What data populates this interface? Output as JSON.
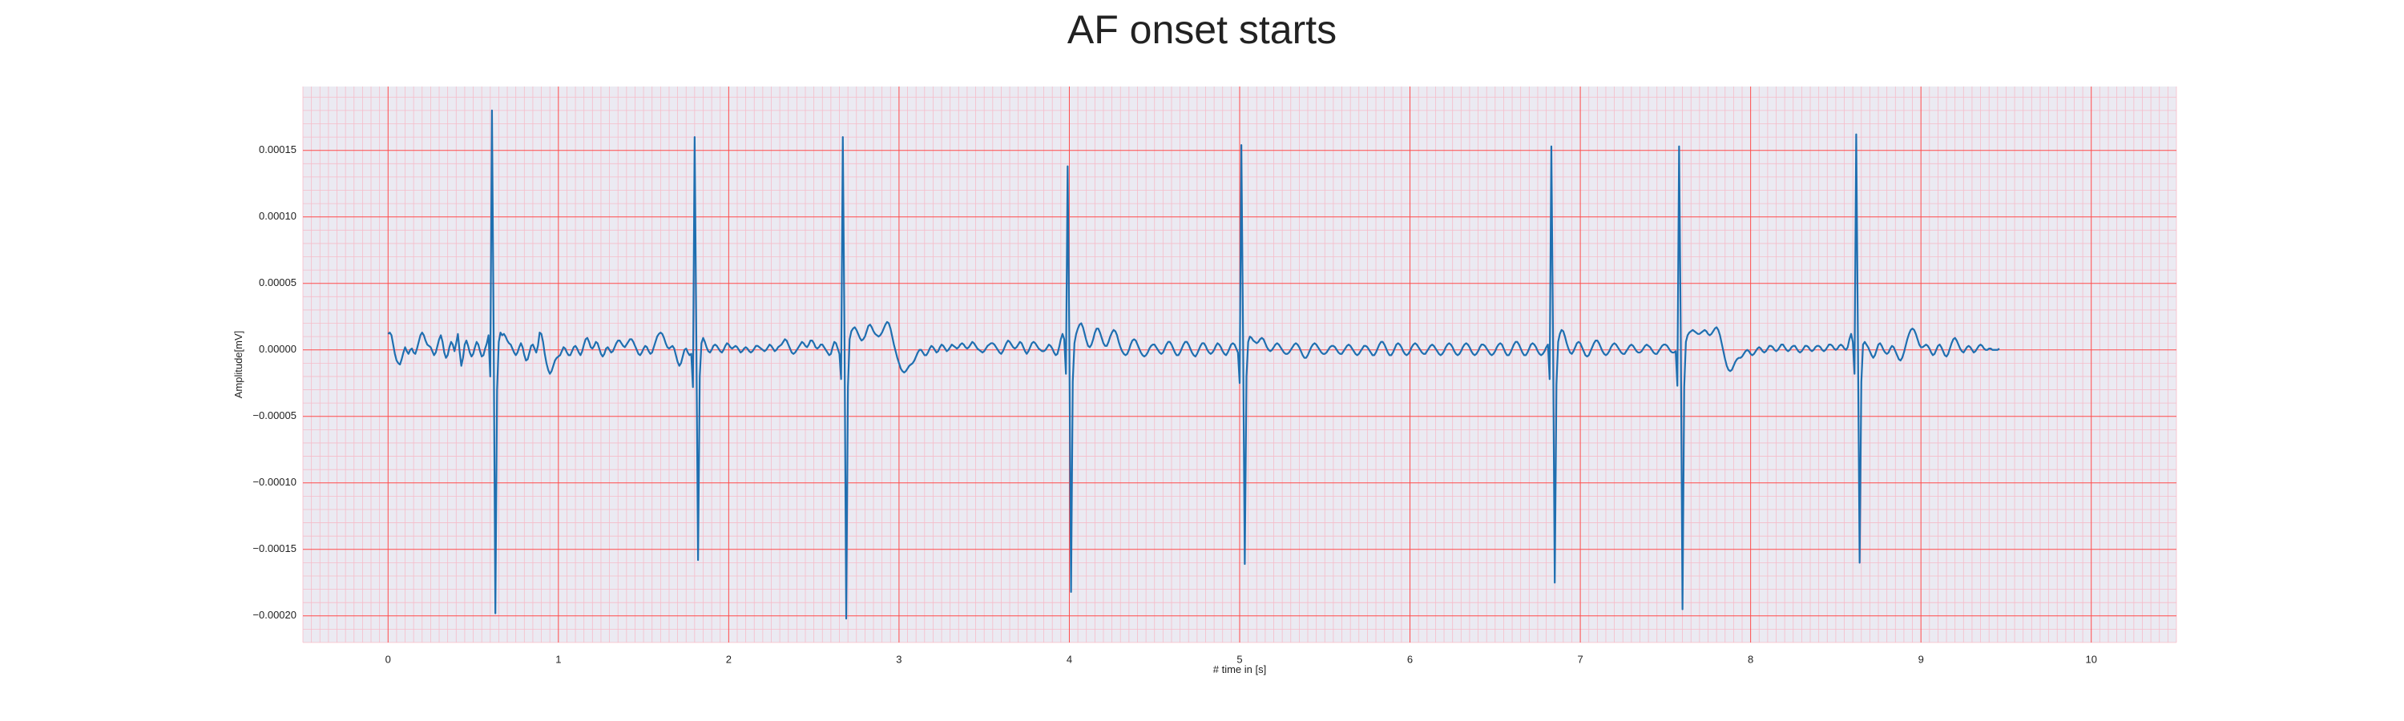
{
  "chart_data": {
    "type": "line",
    "title": "AF onset starts",
    "xlabel": "# time in [s]",
    "ylabel": "Amplitude[mV]",
    "xlim": [
      -0.5,
      10.5
    ],
    "ylim": [
      -0.00022,
      0.000198
    ],
    "x_ticks": [
      0,
      1,
      2,
      3,
      4,
      5,
      6,
      7,
      8,
      9,
      10
    ],
    "x_tick_labels": [
      "0",
      "1",
      "2",
      "3",
      "4",
      "5",
      "6",
      "7",
      "8",
      "9",
      "10"
    ],
    "y_ticks": [
      0.00015,
      0.0001,
      5e-05,
      0.0,
      -5e-05,
      -0.0001,
      -0.00015,
      -0.0002
    ],
    "y_tick_labels": [
      "0.00015",
      "0.00010",
      "0.00005",
      "0.00000",
      "−0.00005",
      "−0.00010",
      "−0.00015",
      "−0.00020"
    ],
    "grid": true,
    "minor_grid": true,
    "background_color": "#ebeaf2",
    "major_grid_color": "#ff4a4a",
    "minor_grid_color": "#f6bcc9",
    "series": [
      {
        "color": "#1f6fb0",
        "sampling_rate_hz": 100,
        "x_start": 0,
        "r_peaks": [
          0.61,
          1.83,
          2.61,
          3.9,
          4.94,
          6.72,
          7.49,
          8.97
        ],
        "r_amplitudes": [
          0.00018,
          0.00016,
          0.00016,
          0.000138,
          0.000154,
          0.000153,
          0.000153,
          0.000162
        ],
        "s_amplitudes": [
          -0.000198,
          -0.000159,
          -0.000202,
          -0.000182,
          -0.000161,
          -0.000175,
          -0.000195,
          -0.00016
        ],
        "values": [
          1.2e-05,
          1.3e-05,
          1.1e-05,
          4e-06,
          -3e-06,
          -8e-06,
          -1e-05,
          -1.1e-05,
          -7e-06,
          -2e-06,
          2e-06,
          -1e-06,
          -3e-06,
          0.0,
          1e-06,
          -2e-06,
          -3e-06,
          1e-06,
          6e-06,
          1.1e-05,
          1.3e-05,
          1.1e-05,
          7e-06,
          4e-06,
          3e-06,
          2e-06,
          -1e-06,
          -4e-06,
          -2e-06,
          3e-06,
          8e-06,
          1.1e-05,
          6e-06,
          -2e-06,
          -6e-06,
          -4e-06,
          2e-06,
          6e-06,
          4e-06,
          -1e-06,
          5e-06,
          1.2e-05,
          -1e-06,
          -1.2e-05,
          -6e-06,
          4e-06,
          7e-06,
          3e-06,
          -2e-06,
          -5e-06,
          -3e-06,
          2e-06,
          6e-06,
          4e-06,
          -1e-06,
          -5e-06,
          -4e-06,
          1e-06,
          5e-06,
          1.1e-05,
          -2e-05,
          0.00018,
          1e-05,
          -0.000198,
          -3e-05,
          6e-06,
          1.3e-05,
          1.1e-05,
          1.2e-05,
          1e-05,
          7e-06,
          5e-06,
          4e-06,
          1e-06,
          -2e-06,
          -4e-06,
          -2e-06,
          2e-06,
          5e-06,
          2e-06,
          -4e-06,
          -8e-06,
          -7e-06,
          -2e-06,
          3e-06,
          4e-06,
          1e-06,
          -2e-06,
          3e-06,
          1.3e-05,
          1.2e-05,
          6e-06,
          -3e-06,
          -1e-05,
          -1.5e-05,
          -1.8e-05,
          -1.6e-05,
          -1.2e-05,
          -8e-06,
          -6e-06,
          -5e-06,
          -4e-06,
          -1e-06,
          2e-06,
          1e-06,
          -2e-06,
          -4e-06,
          -4e-06,
          -1e-06,
          2e-06,
          3e-06,
          1e-06,
          -2e-06,
          -4e-06,
          -1e-06,
          4e-06,
          8e-06,
          9e-06,
          6e-06,
          2e-06,
          1e-06,
          3e-06,
          6e-06,
          5e-06,
          1e-06,
          -3e-06,
          -5e-06,
          -3e-06,
          1e-06,
          2e-06,
          0.0,
          -2e-06,
          -1e-06,
          2e-06,
          5e-06,
          7e-06,
          7e-06,
          5e-06,
          3e-06,
          2e-06,
          4e-06,
          6e-06,
          8e-06,
          8e-06,
          6e-06,
          3e-06,
          0.0,
          -3e-06,
          -4e-06,
          -2e-06,
          1e-06,
          3e-06,
          2e-06,
          -1e-06,
          -3e-06,
          -2e-06,
          2e-06,
          6e-06,
          1e-05,
          1.2e-05,
          1.3e-05,
          1.2e-05,
          9e-06,
          5e-06,
          2e-06,
          1e-06,
          2e-06,
          3e-06,
          1e-06,
          -4e-06,
          -9e-06,
          -1.2e-05,
          -1e-05,
          -5e-06,
          0.0,
          1e-06,
          -2e-06,
          -4e-06,
          -3e-06,
          -2.8e-05,
          0.00016,
          8e-06,
          -0.000158,
          -2e-05,
          5e-06,
          9e-06,
          6e-06,
          2e-06,
          -1e-06,
          -2e-06,
          0.0,
          3e-06,
          4e-06,
          3e-06,
          1e-06,
          -1e-06,
          -2e-06,
          0.0,
          3e-06,
          5e-06,
          4e-06,
          2e-06,
          1e-06,
          2e-06,
          3e-06,
          2e-06,
          0.0,
          -2e-06,
          -1e-06,
          1e-06,
          2e-06,
          1e-06,
          -1e-06,
          -2e-06,
          -1e-06,
          1e-06,
          3e-06,
          3e-06,
          2e-06,
          1e-06,
          0.0,
          -1e-06,
          0.0,
          2e-06,
          4e-06,
          3e-06,
          1e-06,
          -1e-06,
          0.0,
          2e-06,
          3e-06,
          4e-06,
          6e-06,
          8e-06,
          7e-06,
          4e-06,
          1e-06,
          -2e-06,
          -3e-06,
          -2e-06,
          0.0,
          2e-06,
          4e-06,
          6e-06,
          5e-06,
          3e-06,
          2e-06,
          4e-06,
          7e-06,
          7e-06,
          5e-06,
          2e-06,
          1e-06,
          2e-06,
          4e-06,
          4e-06,
          2e-06,
          0.0,
          -2e-06,
          -4e-06,
          -3e-06,
          2e-06,
          6e-06,
          5e-06,
          1e-06,
          -3e-06,
          -2.2e-05,
          0.00016,
          8e-06,
          -0.000202,
          -2.8e-05,
          8e-06,
          1.4e-05,
          1.6e-05,
          1.7e-05,
          1.5e-05,
          1.2e-05,
          9e-06,
          7e-06,
          8e-06,
          1e-05,
          1.4e-05,
          1.8e-05,
          1.9e-05,
          1.7e-05,
          1.4e-05,
          1.2e-05,
          1.1e-05,
          1e-05,
          1.1e-05,
          1.3e-05,
          1.6e-05,
          1.9e-05,
          2.1e-05,
          2e-05,
          1.6e-05,
          1e-05,
          4e-06,
          -1e-06,
          -6e-06,
          -1e-05,
          -1.4e-05,
          -1.6e-05,
          -1.7e-05,
          -1.6e-05,
          -1.4e-05,
          -1.2e-05,
          -1.1e-05,
          -1e-05,
          -8e-06,
          -5e-06,
          -2e-06,
          0.0,
          0.0,
          -2e-06,
          -4e-06,
          -4e-06,
          -2e-06,
          1e-06,
          3e-06,
          2e-06,
          0.0,
          -2e-06,
          -1e-06,
          2e-06,
          4e-06,
          3e-06,
          1e-06,
          -1e-06,
          0.0,
          2e-06,
          4e-06,
          3e-06,
          2e-06,
          1e-06,
          2e-06,
          4e-06,
          5e-06,
          4e-06,
          2e-06,
          1e-06,
          2e-06,
          4e-06,
          6e-06,
          5e-06,
          3e-06,
          1e-06,
          0.0,
          -1e-06,
          -2e-06,
          -1e-06,
          1e-06,
          3e-06,
          4e-06,
          5e-06,
          5e-06,
          4e-06,
          2e-06,
          0.0,
          -2e-06,
          -3e-06,
          -1e-06,
          2e-06,
          5e-06,
          7e-06,
          6e-06,
          4e-06,
          2e-06,
          1e-06,
          2e-06,
          4e-06,
          6e-06,
          5e-06,
          2e-06,
          -1e-06,
          -3e-06,
          -1e-06,
          2e-06,
          5e-06,
          6e-06,
          5e-06,
          3e-06,
          1e-06,
          0.0,
          -1e-06,
          -1e-06,
          0.0,
          2e-06,
          4e-06,
          3e-06,
          1e-06,
          -2e-06,
          -4e-06,
          -3e-06,
          2e-06,
          8e-06,
          1.2e-05,
          8e-06,
          -1.8e-05,
          0.000138,
          6e-06,
          -0.000182,
          -2.4e-05,
          5e-06,
          1.2e-05,
          1.6e-05,
          1.9e-05,
          2e-05,
          1.7e-05,
          1.2e-05,
          7e-06,
          3e-06,
          2e-06,
          4e-06,
          8e-06,
          1.3e-05,
          1.6e-05,
          1.6e-05,
          1.3e-05,
          9e-06,
          5e-06,
          3e-06,
          3e-06,
          6e-06,
          1e-05,
          1.3e-05,
          1.5e-05,
          1.4e-05,
          1.1e-05,
          6e-06,
          2e-06,
          -1e-06,
          -3e-06,
          -4e-06,
          -3e-06,
          0.0,
          4e-06,
          7e-06,
          8e-06,
          7e-06,
          4e-06,
          1e-06,
          -2e-06,
          -4e-06,
          -5e-06,
          -4e-06,
          -2e-06,
          1e-06,
          3e-06,
          4e-06,
          4e-06,
          2e-06,
          0.0,
          -2e-06,
          -3e-06,
          -2e-06,
          1e-06,
          4e-06,
          6e-06,
          6e-06,
          4e-06,
          1e-06,
          -2e-06,
          -4e-06,
          -4e-06,
          -2e-06,
          1e-06,
          4e-06,
          6e-06,
          6e-06,
          4e-06,
          1e-06,
          -2e-06,
          -4e-06,
          -5e-06,
          -3e-06,
          0.0,
          3e-06,
          5e-06,
          5e-06,
          3e-06,
          0.0,
          -2e-06,
          -3e-06,
          -2e-06,
          0.0,
          3e-06,
          5e-06,
          4e-06,
          2e-06,
          -1e-06,
          -3e-06,
          -4e-06,
          -2e-06,
          1e-06,
          4e-06,
          5e-06,
          4e-06,
          1e-06,
          -2e-06,
          -2.5e-05,
          0.000154,
          8e-06,
          -0.000161,
          -2e-05,
          6e-06,
          1e-05,
          9e-06,
          7e-06,
          6e-06,
          5e-06,
          6e-06,
          8e-06,
          9e-06,
          8e-06,
          5e-06,
          2e-06,
          0.0,
          -1e-06,
          0.0,
          2e-06,
          4e-06,
          5e-06,
          4e-06,
          2e-06,
          0.0,
          -2e-06,
          -3e-06,
          -3e-06,
          -2e-06,
          0.0,
          2e-06,
          4e-06,
          5e-06,
          4e-06,
          2e-06,
          -1e-06,
          -4e-06,
          -6e-06,
          -6e-06,
          -4e-06,
          -1e-06,
          2e-06,
          4e-06,
          5e-06,
          4e-06,
          2e-06,
          0.0,
          -2e-06,
          -3e-06,
          -3e-06,
          -2e-06,
          0.0,
          2e-06,
          3e-06,
          3e-06,
          2e-06,
          0.0,
          -2e-06,
          -3e-06,
          -3e-06,
          -1e-06,
          1e-06,
          3e-06,
          4e-06,
          3e-06,
          1e-06,
          -1e-06,
          -3e-06,
          -4e-06,
          -3e-06,
          -1e-06,
          1e-06,
          3e-06,
          3e-06,
          2e-06,
          0.0,
          -2e-06,
          -4e-06,
          -4e-06,
          -2e-06,
          1e-06,
          4e-06,
          6e-06,
          6e-06,
          4e-06,
          1e-06,
          -2e-06,
          -4e-06,
          -4e-06,
          -2e-06,
          1e-06,
          4e-06,
          5e-06,
          4e-06,
          2e-06,
          -1e-06,
          -3e-06,
          -4e-06,
          -3e-06,
          -1e-06,
          2e-06,
          4e-06,
          5e-06,
          4e-06,
          2e-06,
          0.0,
          -2e-06,
          -3e-06,
          -3e-06,
          -1e-06,
          1e-06,
          3e-06,
          4e-06,
          3e-06,
          1e-06,
          -1e-06,
          -3e-06,
          -4e-06,
          -3e-06,
          -1e-06,
          2e-06,
          4e-06,
          5e-06,
          4e-06,
          2e-06,
          -1e-06,
          -3e-06,
          -4e-06,
          -3e-06,
          -1e-06,
          2e-06,
          4e-06,
          5e-06,
          4e-06,
          2e-06,
          -1e-06,
          -3e-06,
          -4e-06,
          -3e-06,
          -1e-06,
          2e-06,
          4e-06,
          4e-06,
          3e-06,
          1e-06,
          -1e-06,
          -3e-06,
          -4e-06,
          -3e-06,
          -1e-06,
          2e-06,
          4e-06,
          5e-06,
          4e-06,
          1e-06,
          -2e-06,
          -4e-06,
          -4e-06,
          -2e-06,
          1e-06,
          4e-06,
          6e-06,
          6e-06,
          4e-06,
          1e-06,
          -2e-06,
          -4e-06,
          -4e-06,
          -2e-06,
          1e-06,
          4e-06,
          5e-06,
          4e-06,
          2e-06,
          -1e-06,
          -3e-06,
          -4e-06,
          -3e-06,
          -1e-06,
          2e-06,
          4e-06,
          -2.2e-05,
          0.000153,
          7e-06,
          -0.000175,
          -2.6e-05,
          6e-06,
          1.2e-05,
          1.5e-05,
          1.4e-05,
          1e-05,
          5e-06,
          1e-06,
          -2e-06,
          -3e-06,
          -1e-06,
          2e-06,
          5e-06,
          6e-06,
          5e-06,
          2e-06,
          -1e-06,
          -4e-06,
          -5e-06,
          -4e-06,
          -1e-06,
          2e-06,
          5e-06,
          7e-06,
          7e-06,
          5e-06,
          2e-06,
          -1e-06,
          -3e-06,
          -4e-06,
          -3e-06,
          -1e-06,
          2e-06,
          4e-06,
          5e-06,
          4e-06,
          2e-06,
          0.0,
          -2e-06,
          -3e-06,
          -3e-06,
          -1e-06,
          1e-06,
          3e-06,
          4e-06,
          3e-06,
          1e-06,
          -1e-06,
          -2e-06,
          -2e-06,
          -1e-06,
          1e-06,
          3e-06,
          4e-06,
          3e-06,
          2e-06,
          0.0,
          -2e-06,
          -3e-06,
          -3e-06,
          -1e-06,
          1e-06,
          3e-06,
          4e-06,
          4e-06,
          3e-06,
          1e-06,
          -1e-06,
          -2e-06,
          -2e-06,
          -1e-06,
          -2.7e-05,
          0.000153,
          9e-06,
          -0.000195,
          -2.8e-05,
          6e-06,
          1.1e-05,
          1.3e-05,
          1.4e-05,
          1.5e-05,
          1.4e-05,
          1.3e-05,
          1.2e-05,
          1.2e-05,
          1.3e-05,
          1.4e-05,
          1.5e-05,
          1.4e-05,
          1.2e-05,
          1.1e-05,
          1.2e-05,
          1.4e-05,
          1.6e-05,
          1.7e-05,
          1.5e-05,
          1.1e-05,
          5e-06,
          -1e-06,
          -7e-06,
          -1.2e-05,
          -1.5e-05,
          -1.6e-05,
          -1.5e-05,
          -1.2e-05,
          -9e-06,
          -7e-06,
          -6e-06,
          -6e-06,
          -5e-06,
          -3e-06,
          -1e-06,
          0.0,
          -1e-06,
          -3e-06,
          -4e-06,
          -3e-06,
          -1e-06,
          1e-06,
          2e-06,
          1e-06,
          -1e-06,
          -2e-06,
          -1e-06,
          1e-06,
          3e-06,
          3e-06,
          2e-06,
          0.0,
          -1e-06,
          0.0,
          2e-06,
          4e-06,
          4e-06,
          2e-06,
          0.0,
          -1e-06,
          0.0,
          2e-06,
          3e-06,
          3e-06,
          1e-06,
          -1e-06,
          -2e-06,
          -1e-06,
          1e-06,
          3e-06,
          3e-06,
          2e-06,
          0.0,
          -1e-06,
          0.0,
          2e-06,
          3e-06,
          3e-06,
          2e-06,
          0.0,
          -1e-06,
          0.0,
          2e-06,
          4e-06,
          4e-06,
          3e-06,
          1e-06,
          0.0,
          1e-06,
          3e-06,
          4e-06,
          3e-06,
          1e-06,
          0.0,
          2e-06,
          8e-06,
          1.2e-05,
          6e-06,
          -1.8e-05,
          0.000162,
          7e-06,
          -0.00016,
          -2.4e-05,
          4e-06,
          6e-06,
          4e-06,
          2e-06,
          -1e-06,
          -4e-06,
          -6e-06,
          -4e-06,
          0.0,
          4e-06,
          5e-06,
          3e-06,
          0.0,
          -2e-06,
          -3e-06,
          -2e-06,
          1e-06,
          3e-06,
          2e-06,
          -1e-06,
          -4e-06,
          -7e-06,
          -8e-06,
          -6e-06,
          -2e-06,
          3e-06,
          8e-06,
          1.2e-05,
          1.5e-05,
          1.6e-05,
          1.5e-05,
          1.2e-05,
          8e-06,
          4e-06,
          2e-06,
          2e-06,
          3e-06,
          4e-06,
          3e-06,
          1e-06,
          -2e-06,
          -4e-06,
          -3e-06,
          0.0,
          3e-06,
          4e-06,
          2e-06,
          -1e-06,
          -4e-06,
          -5e-06,
          -3e-06,
          1e-06,
          5e-06,
          8e-06,
          9e-06,
          7e-06,
          4e-06,
          1e-06,
          -1e-06,
          -2e-06,
          0.0,
          2e-06,
          3e-06,
          2e-06,
          0.0,
          -2e-06,
          -1e-06,
          1e-06,
          3e-06,
          4e-06,
          3e-06,
          1e-06,
          0.0,
          0.0,
          1e-06,
          1e-06,
          0.0,
          0.0,
          0.0,
          0.0,
          1e-06
        ]
      }
    ]
  }
}
